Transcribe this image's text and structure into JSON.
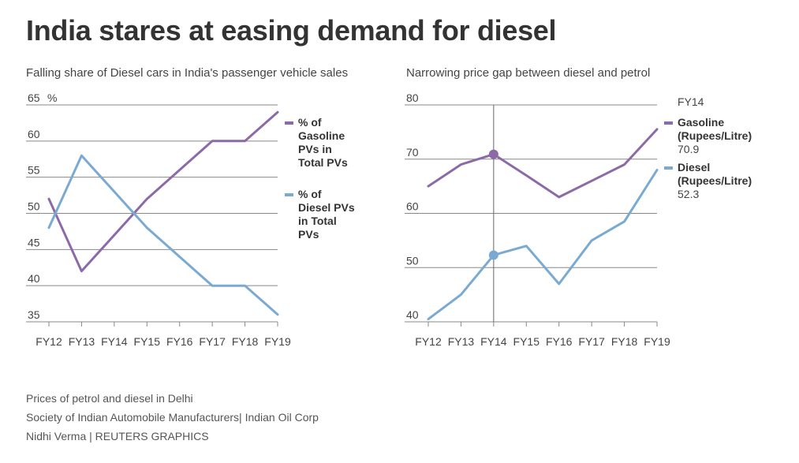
{
  "title": "India stares at easing demand for diesel",
  "colors": {
    "gasoline": "#8c6aa8",
    "diesel": "#7aaad2",
    "grid": "#888888",
    "text": "#444444"
  },
  "chart_data": [
    {
      "type": "line",
      "title": "Falling share of Diesel cars in India's passenger vehicle sales",
      "unit": "%",
      "categories": [
        "FY12",
        "FY13",
        "FY14",
        "FY15",
        "FY16",
        "FY17",
        "FY18",
        "FY19"
      ],
      "ylim": [
        35,
        65
      ],
      "yticks": [
        35,
        40,
        45,
        50,
        55,
        60,
        65
      ],
      "series": [
        {
          "name": "% of Gasoline PVs in Total PVs",
          "legend_lines": [
            "% of",
            "Gasoline",
            "PVs in",
            "Total PVs"
          ],
          "color": "#8c6aa8",
          "values": [
            52,
            42,
            47,
            52,
            56,
            60,
            60,
            64
          ]
        },
        {
          "name": "% of Diesel PVs in Total PVs",
          "legend_lines": [
            "% of",
            "Diesel PVs",
            "in Total",
            "PVs"
          ],
          "color": "#7aaad2",
          "values": [
            48,
            58,
            53,
            48,
            44,
            40,
            40,
            36
          ]
        }
      ]
    },
    {
      "type": "line",
      "title": "Narrowing price gap between diesel and petrol",
      "categories": [
        "FY12",
        "FY13",
        "FY14",
        "FY15",
        "FY16",
        "FY17",
        "FY18",
        "FY19"
      ],
      "ylim": [
        40,
        80
      ],
      "yticks": [
        40,
        50,
        60,
        70,
        80
      ],
      "highlight": {
        "category": "FY14",
        "label": "FY14"
      },
      "series": [
        {
          "name": "Gasoline (Rupees/Litre)",
          "legend_lines": [
            "Gasoline",
            "(Rupees/Litre)"
          ],
          "highlight_value": "70.9",
          "color": "#8c6aa8",
          "values": [
            65,
            69,
            70.9,
            67,
            63,
            66,
            69,
            75.5
          ]
        },
        {
          "name": "Diesel (Rupees/Litre)",
          "legend_lines": [
            "Diesel",
            "(Rupees/Litre)"
          ],
          "highlight_value": "52.3",
          "color": "#7aaad2",
          "values": [
            40.5,
            45,
            52.3,
            54,
            47,
            55,
            58.5,
            68
          ]
        }
      ]
    }
  ],
  "footer": [
    "Prices of petrol and diesel in Delhi",
    "Society of Indian Automobile Manufacturers| Indian Oil Corp",
    "Nidhi Verma    | REUTERS GRAPHICS"
  ]
}
